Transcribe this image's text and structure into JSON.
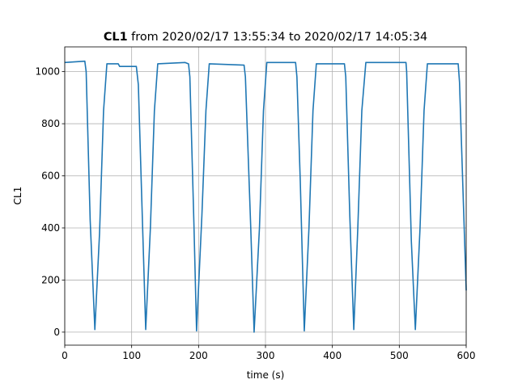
{
  "chart_data": {
    "type": "line",
    "title": "CL1",
    "title_suffix": "from 2020/02/17 13:55:34 to 2020/02/17 14:05:34",
    "x_label": "time (s)",
    "y_label": "CL1",
    "color": "#1f77b4",
    "x": [
      0,
      30,
      32,
      38,
      45,
      52,
      58,
      63,
      80,
      82,
      107,
      110,
      115,
      121,
      128,
      134,
      139,
      180,
      185,
      187,
      193,
      197,
      205,
      211,
      216,
      268,
      270,
      278,
      283,
      291,
      297,
      302,
      345,
      347,
      352,
      358,
      365,
      371,
      376,
      418,
      420,
      426,
      432,
      438,
      444,
      450,
      510,
      511,
      518,
      524,
      531,
      537,
      542,
      588,
      590,
      600
    ],
    "values": [
      1035,
      1040,
      1000,
      430,
      10,
      380,
      850,
      1030,
      1030,
      1020,
      1020,
      950,
      520,
      10,
      400,
      850,
      1030,
      1035,
      1030,
      980,
      420,
      5,
      450,
      850,
      1030,
      1025,
      980,
      400,
      0,
      400,
      850,
      1035,
      1035,
      980,
      580,
      5,
      400,
      850,
      1030,
      1030,
      980,
      450,
      10,
      400,
      850,
      1035,
      1035,
      1000,
      350,
      10,
      400,
      850,
      1030,
      1030,
      960,
      160
    ],
    "xlim": [
      0,
      600
    ],
    "xticks": [
      0,
      100,
      200,
      300,
      400,
      500,
      600
    ],
    "ylim": [
      -50,
      1095
    ],
    "yticks": [
      0,
      200,
      400,
      600,
      800,
      1000
    ],
    "grid": true
  }
}
